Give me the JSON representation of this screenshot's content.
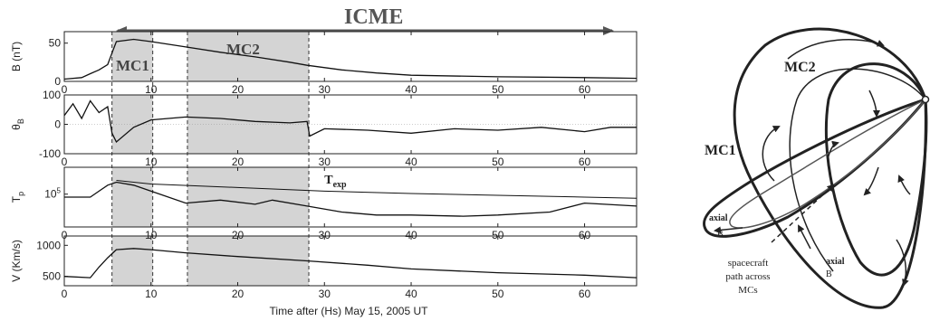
{
  "header": {
    "title": "ICME",
    "mc1": "MC1",
    "mc2": "MC2"
  },
  "xlabel": "Time after (Hs) May 15, 2005 UT",
  "panels": [
    {
      "ylabel": "B (nT)",
      "ylim": [
        0,
        65
      ],
      "yticks": [
        "0",
        "50"
      ],
      "ytick_values": [
        0,
        50
      ],
      "xticks": [
        "0",
        "10",
        "20",
        "30",
        "40",
        "50",
        "60"
      ],
      "annotation": ""
    },
    {
      "ylabel": "θB",
      "ylim": [
        -100,
        100
      ],
      "yticks": [
        "-100",
        "0",
        "100"
      ],
      "ytick_values": [
        -100,
        0,
        100
      ],
      "xticks": [
        "0",
        "10",
        "20",
        "30",
        "40",
        "50",
        "60"
      ],
      "annotation": ""
    },
    {
      "ylabel": "Tp",
      "ylim": [
        0,
        1
      ],
      "yticks": [
        "105"
      ],
      "ytick_values": [
        0.55
      ],
      "xticks": [
        "0",
        "10",
        "20",
        "30",
        "40",
        "50",
        "60"
      ],
      "annotation": "Texp"
    },
    {
      "ylabel": "V (Km/s)",
      "ylim": [
        350,
        1150
      ],
      "yticks": [
        "500",
        "1000"
      ],
      "ytick_values": [
        500,
        1000
      ],
      "xticks": [
        "0",
        "10",
        "20",
        "30",
        "40",
        "50",
        "60"
      ],
      "annotation": ""
    }
  ],
  "shading": {
    "mc1": [
      5.5,
      10.2
    ],
    "mc2": [
      14.2,
      28.2
    ],
    "icme": [
      5.5,
      63.5
    ],
    "color": "#d4d4d4"
  },
  "chart_data": {
    "type": "line",
    "x_range": [
      0,
      66
    ],
    "series": [
      {
        "panel": 0,
        "x": [
          0,
          2,
          3,
          4,
          5,
          5.6,
          6,
          8,
          10,
          14,
          18,
          22,
          26,
          28,
          32,
          36,
          40,
          50,
          60,
          66
        ],
        "y": [
          3,
          5,
          10,
          15,
          22,
          40,
          52,
          55,
          52,
          45,
          38,
          32,
          25,
          21,
          15,
          11,
          8,
          6,
          5,
          4
        ]
      },
      {
        "panel": 1,
        "x": [
          0,
          1,
          2,
          3,
          4,
          5,
          5.5,
          6,
          8,
          10,
          14,
          18,
          22,
          26,
          28,
          28.3,
          30,
          35,
          40,
          45,
          50,
          55,
          60,
          63,
          66
        ],
        "y": [
          30,
          70,
          20,
          80,
          40,
          60,
          -30,
          -60,
          -10,
          15,
          25,
          20,
          10,
          5,
          10,
          -40,
          -15,
          -20,
          -30,
          -15,
          -20,
          -10,
          -25,
          -10,
          -10
        ]
      },
      {
        "panel": 2,
        "name": "Texp",
        "x": [
          6,
          10,
          20,
          30,
          40,
          50,
          60,
          66
        ],
        "y": [
          0.78,
          0.72,
          0.66,
          0.6,
          0.56,
          0.53,
          0.5,
          0.48
        ]
      },
      {
        "panel": 2,
        "x": [
          0,
          3,
          4,
          5,
          6,
          8,
          10,
          14,
          18,
          22,
          24,
          28,
          32,
          36,
          40,
          46,
          50,
          56,
          60,
          66
        ],
        "y": [
          0.5,
          0.5,
          0.6,
          0.7,
          0.75,
          0.7,
          0.6,
          0.4,
          0.45,
          0.38,
          0.45,
          0.35,
          0.25,
          0.2,
          0.2,
          0.18,
          0.2,
          0.25,
          0.4,
          0.35
        ]
      },
      {
        "panel": 3,
        "x": [
          0,
          3,
          4,
          5,
          6,
          8,
          10,
          14,
          20,
          28,
          35,
          40,
          50,
          60,
          66
        ],
        "y": [
          500,
          480,
          650,
          800,
          930,
          950,
          930,
          880,
          820,
          750,
          680,
          620,
          560,
          520,
          480
        ]
      }
    ]
  },
  "diagram": {
    "labels": {
      "mc2": "MC2",
      "mc1": "MC1",
      "axial1": "axial",
      "b1": "B",
      "axial2": "axial",
      "b2": "B",
      "path1": "spacecraft",
      "path2": "path across",
      "path3": "MCs"
    }
  }
}
